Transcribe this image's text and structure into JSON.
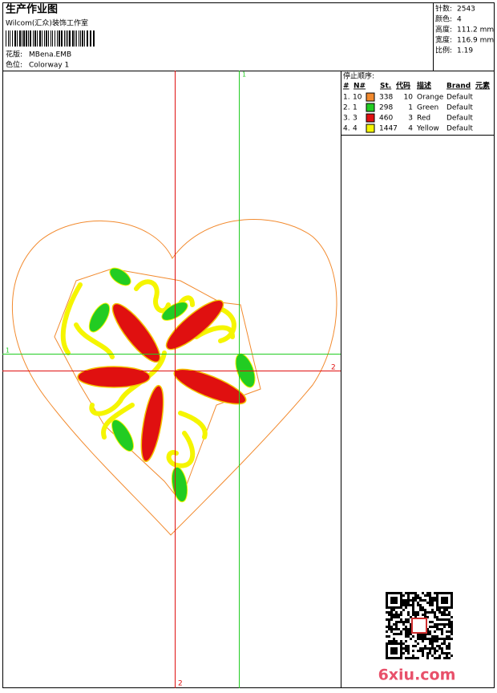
{
  "header": {
    "title": "生产作业图",
    "studio": "Wilcom(汇众)装饰工作室",
    "design_label": "花版:",
    "design_file": "MBena.EMB",
    "colorway_label": "色位:",
    "colorway": "Colorway 1"
  },
  "stats": [
    {
      "label": "针数:",
      "value": 2543
    },
    {
      "label": "颜色:",
      "value": 4
    },
    {
      "label": "高度:",
      "value": "111.2 mm"
    },
    {
      "label": "宽度:",
      "value": "116.9 mm"
    },
    {
      "label": "比例:",
      "value": 1.19
    }
  ],
  "stop_sequence": {
    "title": "停止顺序:",
    "columns": [
      "#",
      "N#",
      "St.",
      "代码",
      "描述",
      "Brand",
      "元素"
    ],
    "rows": [
      {
        "index": "1.",
        "needle": 10,
        "color": "#f28a2e",
        "stitches": 338,
        "code": 10,
        "description": "Orange",
        "brand": "Default"
      },
      {
        "index": "2.",
        "needle": 1,
        "color": "#22cc22",
        "stitches": 298,
        "code": 1,
        "description": "Green",
        "brand": "Default"
      },
      {
        "index": "3.",
        "needle": 3,
        "color": "#e01010",
        "stitches": 460,
        "code": 3,
        "description": "Red",
        "brand": "Default"
      },
      {
        "index": "4.",
        "needle": 4,
        "color": "#f5f500",
        "stitches": 1447,
        "code": 4,
        "description": "Yellow",
        "brand": "Default"
      }
    ]
  },
  "axes": {
    "green_label": "1",
    "red_label": "2"
  },
  "watermark": "6xiu.com"
}
